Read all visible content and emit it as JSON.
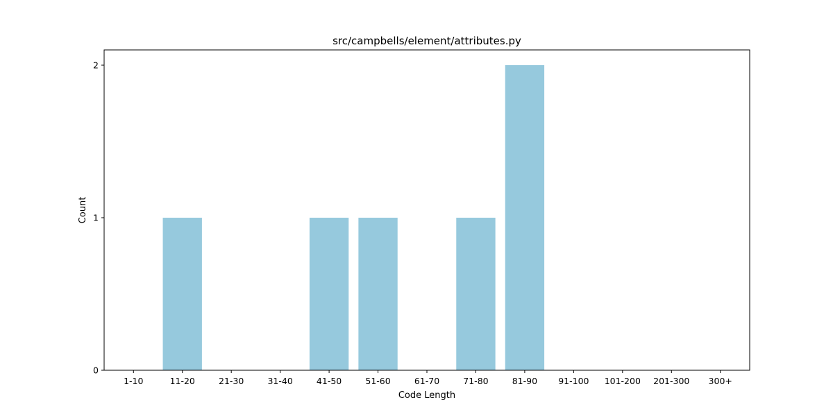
{
  "chart_data": {
    "type": "bar",
    "title": "src/campbells/element/attributes.py",
    "xlabel": "Code Length",
    "ylabel": "Count",
    "categories": [
      "1-10",
      "11-20",
      "21-30",
      "31-40",
      "41-50",
      "51-60",
      "61-70",
      "71-80",
      "81-90",
      "91-100",
      "101-200",
      "201-300",
      "300+"
    ],
    "values": [
      0,
      1,
      0,
      0,
      1,
      1,
      0,
      1,
      2,
      0,
      0,
      0,
      0
    ],
    "ylim": [
      0,
      2.1
    ],
    "yticks": [
      0,
      1,
      2
    ],
    "bar_color": "#96c9dd",
    "grid": false,
    "legend": "none"
  }
}
